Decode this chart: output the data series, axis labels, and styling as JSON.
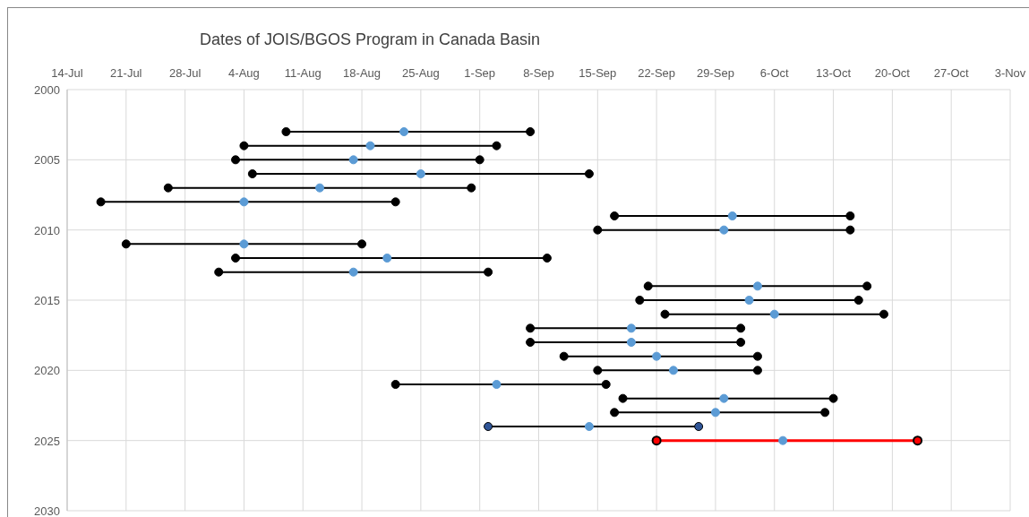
{
  "chart_data": {
    "type": "line",
    "title": "Dates of  JOIS/BGOS Program in Canada Basin",
    "xlim": [
      "--07-14",
      "--11-03"
    ],
    "xticks": [
      {
        "value": "--07-14",
        "label": "14-Jul"
      },
      {
        "value": "--07-21",
        "label": "21-Jul"
      },
      {
        "value": "--07-28",
        "label": "28-Jul"
      },
      {
        "value": "--08-04",
        "label": "4-Aug"
      },
      {
        "value": "--08-11",
        "label": "11-Aug"
      },
      {
        "value": "--08-18",
        "label": "18-Aug"
      },
      {
        "value": "--08-25",
        "label": "25-Aug"
      },
      {
        "value": "--09-01",
        "label": "1-Sep"
      },
      {
        "value": "--09-08",
        "label": "8-Sep"
      },
      {
        "value": "--09-15",
        "label": "15-Sep"
      },
      {
        "value": "--09-22",
        "label": "22-Sep"
      },
      {
        "value": "--09-29",
        "label": "29-Sep"
      },
      {
        "value": "--10-06",
        "label": "6-Oct"
      },
      {
        "value": "--10-13",
        "label": "13-Oct"
      },
      {
        "value": "--10-20",
        "label": "20-Oct"
      },
      {
        "value": "--10-27",
        "label": "27-Oct"
      },
      {
        "value": "--11-03",
        "label": "3-Nov"
      }
    ],
    "ylim": [
      2030,
      2000
    ],
    "yticks": [
      2000,
      2005,
      2010,
      2015,
      2020,
      2025,
      2030
    ],
    "grid": true,
    "marker": "circle",
    "line_style": "solid",
    "series": [
      {
        "x": [
          "--08-09",
          "--08-23",
          "--09-07"
        ],
        "values": [
          2003,
          2003,
          2003
        ],
        "color": "#000000",
        "colors": [
          "#000000",
          "#5b9bd5",
          "#000000"
        ]
      },
      {
        "x": [
          "--08-04",
          "--08-19",
          "--09-03"
        ],
        "values": [
          2004,
          2004,
          2004
        ],
        "color": "#000000",
        "colors": [
          "#000000",
          "#5b9bd5",
          "#000000"
        ]
      },
      {
        "x": [
          "--08-03",
          "--08-17",
          "--09-01"
        ],
        "values": [
          2005,
          2005,
          2005
        ],
        "color": "#000000",
        "colors": [
          "#000000",
          "#5b9bd5",
          "#000000"
        ]
      },
      {
        "x": [
          "--08-05",
          "--08-25",
          "--09-14"
        ],
        "values": [
          2006,
          2006,
          2006
        ],
        "color": "#000000",
        "colors": [
          "#000000",
          "#5b9bd5",
          "#000000"
        ]
      },
      {
        "x": [
          "--07-26",
          "--08-13",
          "--08-31"
        ],
        "values": [
          2007,
          2007,
          2007
        ],
        "color": "#000000",
        "colors": [
          "#000000",
          "#5b9bd5",
          "#000000"
        ]
      },
      {
        "x": [
          "--07-18",
          "--08-04",
          "--08-22"
        ],
        "values": [
          2008,
          2008,
          2008
        ],
        "color": "#000000",
        "colors": [
          "#000000",
          "#5b9bd5",
          "#000000"
        ]
      },
      {
        "x": [
          "--09-17",
          "--10-01",
          "--10-15"
        ],
        "values": [
          2009,
          2009,
          2009
        ],
        "color": "#000000",
        "colors": [
          "#000000",
          "#5b9bd5",
          "#000000"
        ]
      },
      {
        "x": [
          "--09-15",
          "--09-30",
          "--10-15"
        ],
        "values": [
          2010,
          2010,
          2010
        ],
        "color": "#000000",
        "colors": [
          "#000000",
          "#5b9bd5",
          "#000000"
        ]
      },
      {
        "x": [
          "--07-21",
          "--08-04",
          "--08-18"
        ],
        "values": [
          2011,
          2011,
          2011
        ],
        "color": "#000000",
        "colors": [
          "#000000",
          "#5b9bd5",
          "#000000"
        ]
      },
      {
        "x": [
          "--08-03",
          "--08-21",
          "--09-09"
        ],
        "values": [
          2012,
          2012,
          2012
        ],
        "color": "#000000",
        "colors": [
          "#000000",
          "#5b9bd5",
          "#000000"
        ]
      },
      {
        "x": [
          "--08-01",
          "--08-17",
          "--09-02"
        ],
        "values": [
          2013,
          2013,
          2013
        ],
        "color": "#000000",
        "colors": [
          "#000000",
          "#5b9bd5",
          "#000000"
        ]
      },
      {
        "x": [
          "--09-21",
          "--10-04",
          "--10-17"
        ],
        "values": [
          2014,
          2014,
          2014
        ],
        "color": "#000000",
        "colors": [
          "#000000",
          "#5b9bd5",
          "#000000"
        ]
      },
      {
        "x": [
          "--09-20",
          "--10-03",
          "--10-16"
        ],
        "values": [
          2015,
          2015,
          2015
        ],
        "color": "#000000",
        "colors": [
          "#000000",
          "#5b9bd5",
          "#000000"
        ]
      },
      {
        "x": [
          "--09-23",
          "--10-06",
          "--10-19"
        ],
        "values": [
          2016,
          2016,
          2016
        ],
        "color": "#000000",
        "colors": [
          "#000000",
          "#5b9bd5",
          "#000000"
        ]
      },
      {
        "x": [
          "--09-07",
          "--09-19",
          "--10-02"
        ],
        "values": [
          2017,
          2017,
          2017
        ],
        "color": "#000000",
        "colors": [
          "#000000",
          "#5b9bd5",
          "#000000"
        ]
      },
      {
        "x": [
          "--09-07",
          "--09-19",
          "--10-02"
        ],
        "values": [
          2018,
          2018,
          2018
        ],
        "color": "#000000",
        "colors": [
          "#000000",
          "#5b9bd5",
          "#000000"
        ]
      },
      {
        "x": [
          "--09-11",
          "--09-22",
          "--10-04"
        ],
        "values": [
          2019,
          2019,
          2019
        ],
        "color": "#000000",
        "colors": [
          "#000000",
          "#5b9bd5",
          "#000000"
        ]
      },
      {
        "x": [
          "--09-15",
          "--09-24",
          "--10-04"
        ],
        "values": [
          2020,
          2020,
          2020
        ],
        "color": "#000000",
        "colors": [
          "#000000",
          "#5b9bd5",
          "#000000"
        ]
      },
      {
        "x": [
          "--08-22",
          "--09-03",
          "--09-16"
        ],
        "values": [
          2021,
          2021,
          2021
        ],
        "color": "#000000",
        "colors": [
          "#000000",
          "#5b9bd5",
          "#000000"
        ]
      },
      {
        "x": [
          "--09-18",
          "--09-30",
          "--10-13"
        ],
        "values": [
          2022,
          2022,
          2022
        ],
        "color": "#000000",
        "colors": [
          "#000000",
          "#5b9bd5",
          "#000000"
        ]
      },
      {
        "x": [
          "--09-17",
          "--09-29",
          "--10-12"
        ],
        "values": [
          2023,
          2023,
          2023
        ],
        "color": "#000000",
        "colors": [
          "#000000",
          "#5b9bd5",
          "#000000"
        ]
      },
      {
        "x": [
          "--09-02",
          "--09-14",
          "--09-27"
        ],
        "values": [
          2024,
          2024,
          2024
        ],
        "color": "#000000",
        "colors": [
          "#2f5597",
          "#5b9bd5",
          "#2f5597"
        ]
      },
      {
        "x": [
          "--09-22",
          "--10-07",
          "--10-23"
        ],
        "values": [
          2025,
          2025,
          2025
        ],
        "color": "#ff0000",
        "colors": [
          "#ff0000",
          "#5b9bd5",
          "#ff0000"
        ]
      }
    ]
  }
}
